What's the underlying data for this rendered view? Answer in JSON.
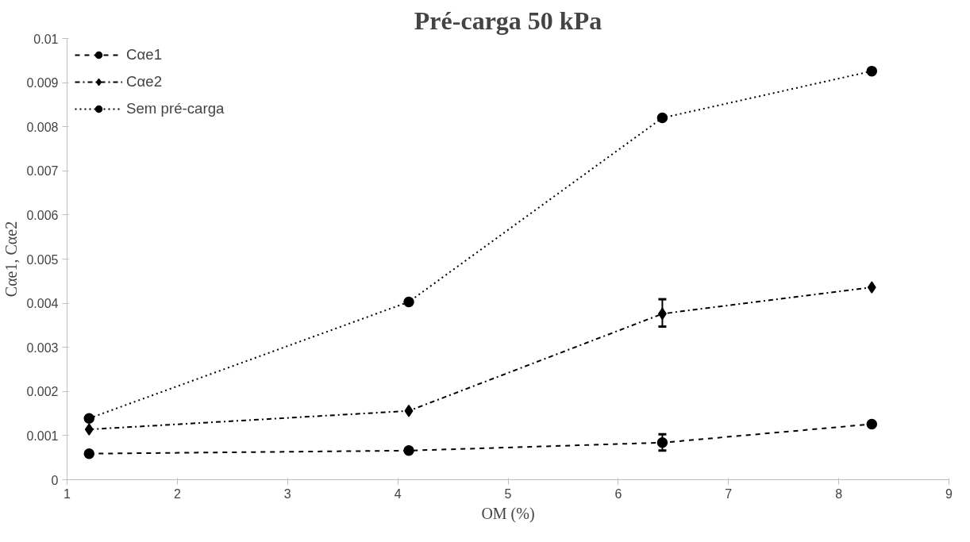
{
  "chart_data": {
    "type": "line",
    "title": "Pré-carga 50 kPa",
    "xlabel": "OM (%)",
    "ylabel": "Cαe1, Cαe2",
    "x": [
      1.2,
      4.1,
      6.4,
      8.3
    ],
    "series": [
      {
        "name": "Cαe1",
        "color": "#000000",
        "marker": "circle",
        "line_style": "dashed",
        "values": [
          0.00059,
          0.00066,
          0.00084,
          0.00126
        ],
        "errors": [
          null,
          null,
          [
            0.00066,
            0.00103
          ],
          null
        ]
      },
      {
        "name": "Cαe2",
        "color": "#000000",
        "marker": "diamond",
        "line_style": "dashdot",
        "values": [
          0.00114,
          0.00156,
          0.00376,
          0.00436
        ],
        "errors": [
          null,
          null,
          [
            0.00347,
            0.00409
          ],
          null
        ]
      },
      {
        "name": "Sem pré-carga",
        "color": "#000000",
        "marker": "circle",
        "line_style": "dotted",
        "values": [
          0.00139,
          0.00403,
          0.0082,
          0.00926
        ]
      }
    ],
    "xlim": [
      1,
      9
    ],
    "xticks": [
      1,
      2,
      3,
      4,
      5,
      6,
      7,
      8,
      9
    ],
    "ylim": [
      0,
      0.01
    ],
    "yticks": [
      0,
      0.001,
      0.002,
      0.003,
      0.004,
      0.005,
      0.006,
      0.007,
      0.008,
      0.009,
      0.01
    ],
    "grid": false,
    "legend": "top left"
  }
}
